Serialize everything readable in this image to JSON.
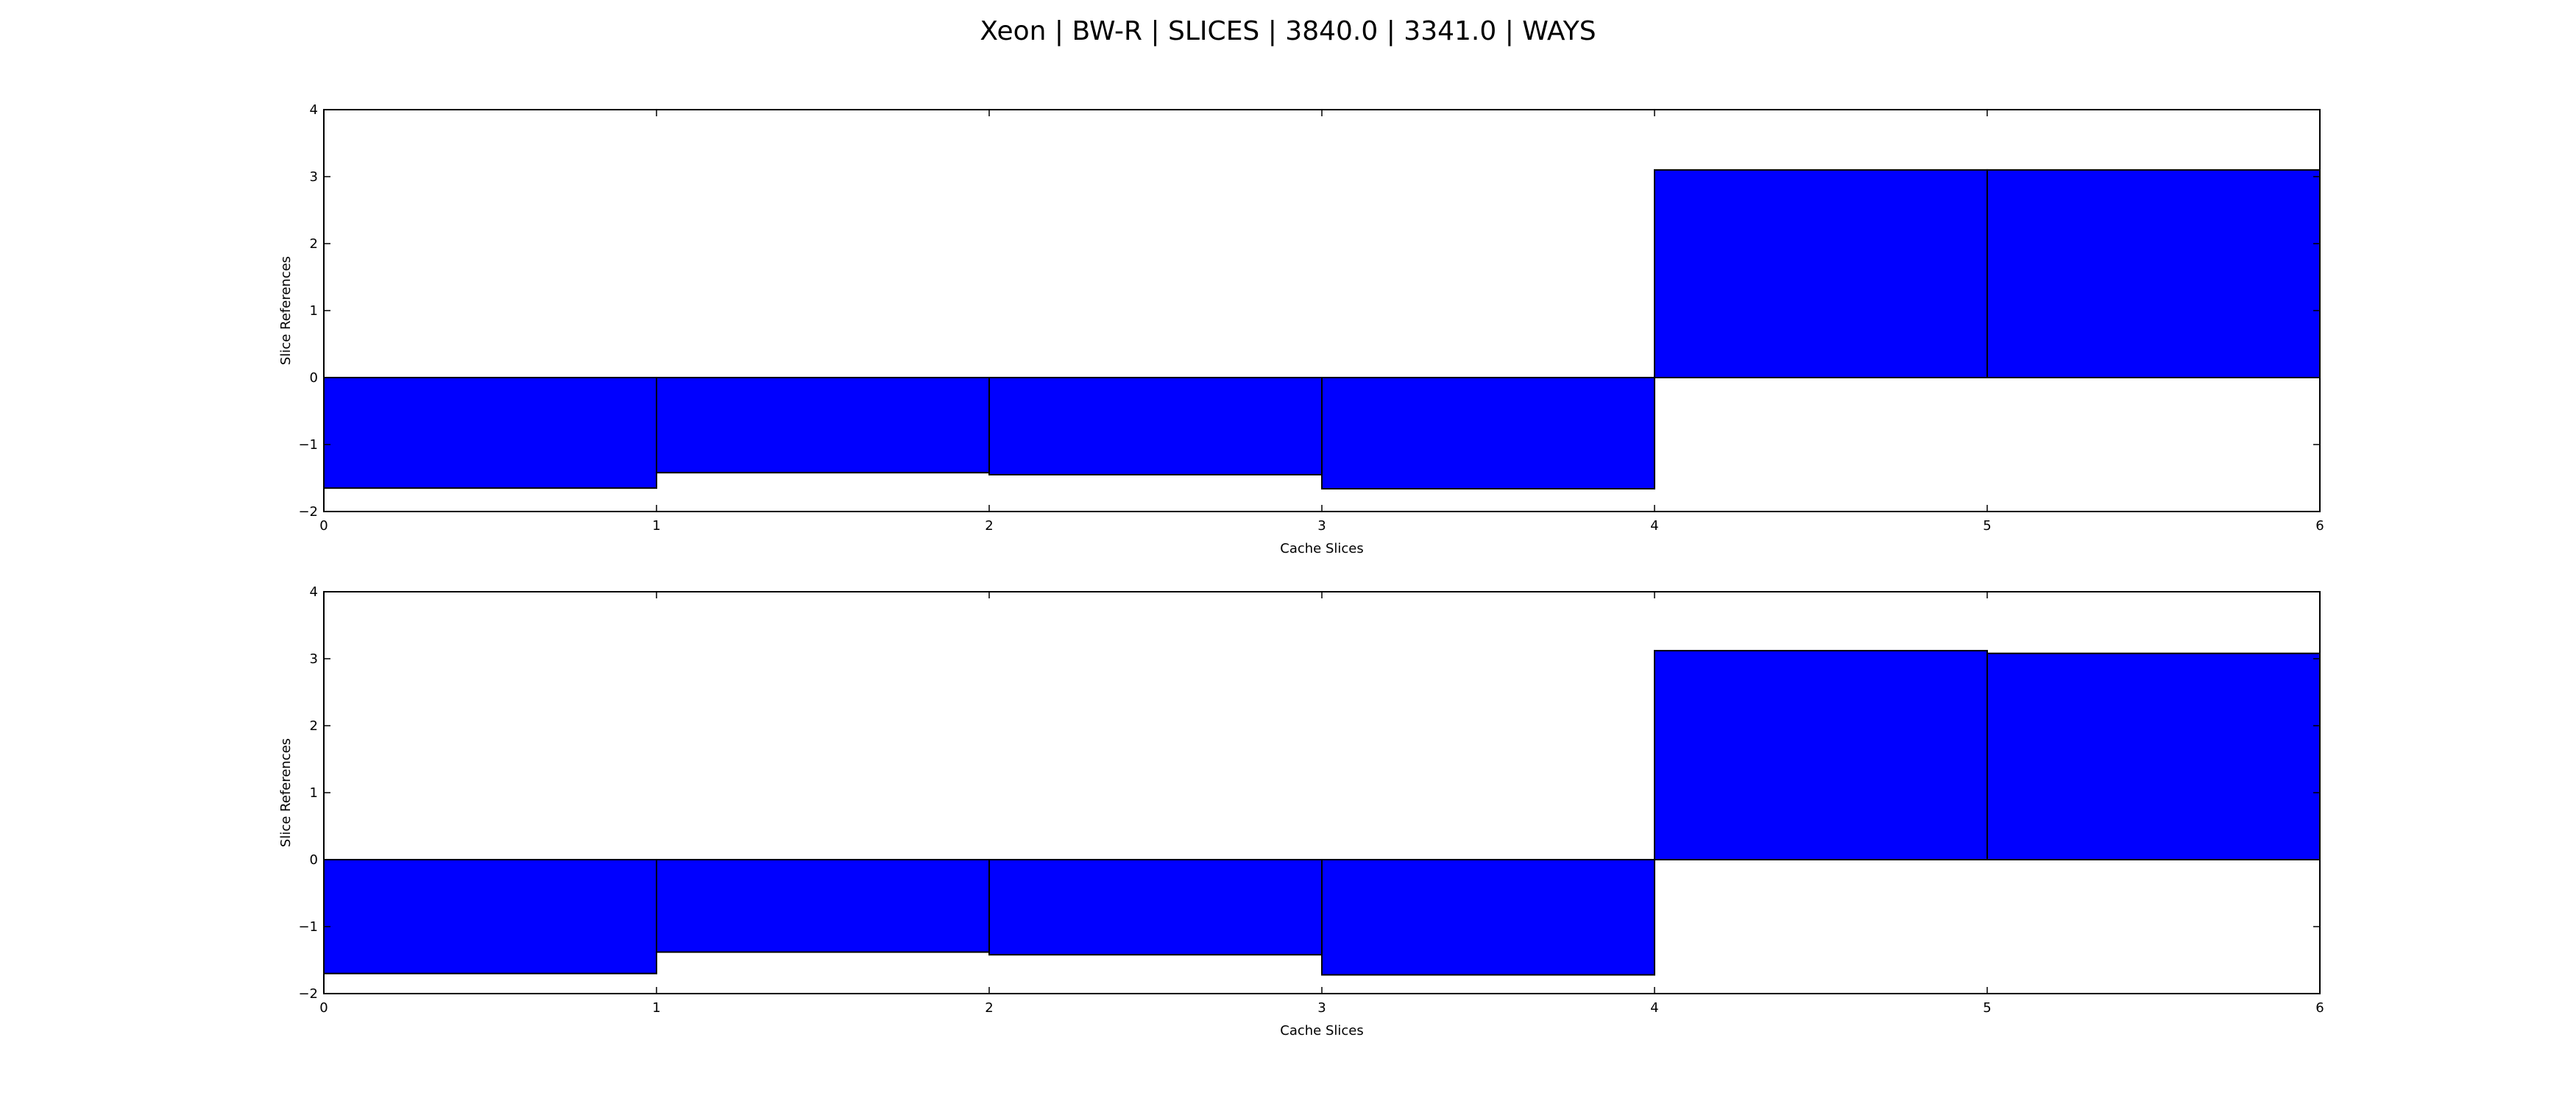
{
  "title": "Xeon | BW-R | SLICES | 3840.0 | 3341.0 | WAYS",
  "colors": {
    "bar_fill": "#0000ff",
    "bar_edge": "#000000",
    "axes": "#000000",
    "background": "#ffffff"
  },
  "chart_data": [
    {
      "type": "bar",
      "xlabel": "Cache Slices",
      "ylabel": "Slice References",
      "xlim": [
        0,
        6
      ],
      "ylim": [
        -2,
        4
      ],
      "xticks": [
        "0",
        "1",
        "2",
        "3",
        "4",
        "5",
        "6"
      ],
      "yticks": [
        "−2",
        "−1",
        "0",
        "1",
        "2",
        "3",
        "4"
      ],
      "grid": false,
      "bars": [
        {
          "x0": 0,
          "x1": 1,
          "value": -1.65
        },
        {
          "x0": 1,
          "x1": 2,
          "value": -1.42
        },
        {
          "x0": 2,
          "x1": 3,
          "value": -1.45
        },
        {
          "x0": 3,
          "x1": 4,
          "value": -1.66
        },
        {
          "x0": 4,
          "x1": 5,
          "value": 3.1
        },
        {
          "x0": 5,
          "x1": 6,
          "value": 3.1
        }
      ]
    },
    {
      "type": "bar",
      "xlabel": "Cache Slices",
      "ylabel": "Slice References",
      "xlim": [
        0,
        6
      ],
      "ylim": [
        -2,
        4
      ],
      "xticks": [
        "0",
        "1",
        "2",
        "3",
        "4",
        "5",
        "6"
      ],
      "yticks": [
        "−2",
        "−1",
        "0",
        "1",
        "2",
        "3",
        "4"
      ],
      "grid": false,
      "bars": [
        {
          "x0": 0,
          "x1": 1,
          "value": -1.7
        },
        {
          "x0": 1,
          "x1": 2,
          "value": -1.38
        },
        {
          "x0": 2,
          "x1": 3,
          "value": -1.42
        },
        {
          "x0": 3,
          "x1": 4,
          "value": -1.72
        },
        {
          "x0": 4,
          "x1": 5,
          "value": 3.12
        },
        {
          "x0": 5,
          "x1": 6,
          "value": 3.08
        }
      ]
    }
  ]
}
